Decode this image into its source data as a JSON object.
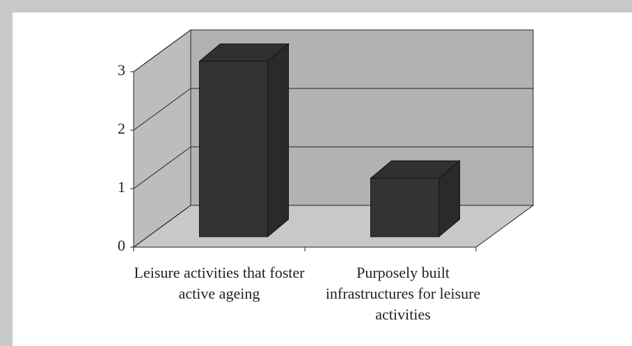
{
  "chart_data": {
    "type": "bar",
    "categories": [
      "Leisure activities that foster active ageing",
      "Purposely built infrastructures for leisure activities"
    ],
    "values": [
      3,
      1
    ],
    "color": "#333333",
    "ylim": [
      0,
      3
    ],
    "yticks": [
      0,
      1,
      2,
      3
    ],
    "grid": true
  }
}
